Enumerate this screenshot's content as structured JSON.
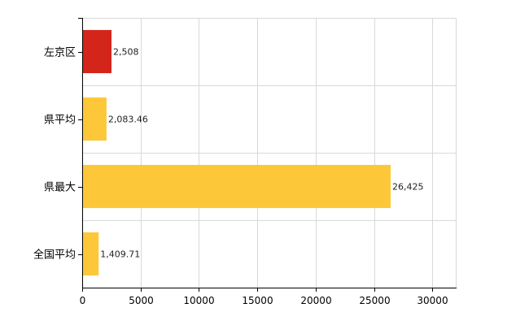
{
  "chart_data": {
    "type": "bar",
    "orientation": "horizontal",
    "title": "",
    "xlabel": "",
    "ylabel": "",
    "categories": [
      "左京区",
      "県平均",
      "県最大",
      "全国平均"
    ],
    "values": [
      2508,
      2083.46,
      26425,
      1409.71
    ],
    "value_labels": [
      "2,508",
      "2,083.46",
      "26,425",
      "1,409.71"
    ],
    "bar_colors": [
      "#d4251a",
      "#fcc83a",
      "#fcc83a",
      "#fcc83a"
    ],
    "xlim": [
      0,
      32000
    ],
    "x_ticks": [
      0,
      5000,
      10000,
      15000,
      20000,
      25000,
      30000
    ],
    "x_tick_labels": [
      "0",
      "5000",
      "10000",
      "15000",
      "20000",
      "25000",
      "30000"
    ],
    "grid": true,
    "grid_color": "#d9d9d9",
    "legend": "none"
  }
}
